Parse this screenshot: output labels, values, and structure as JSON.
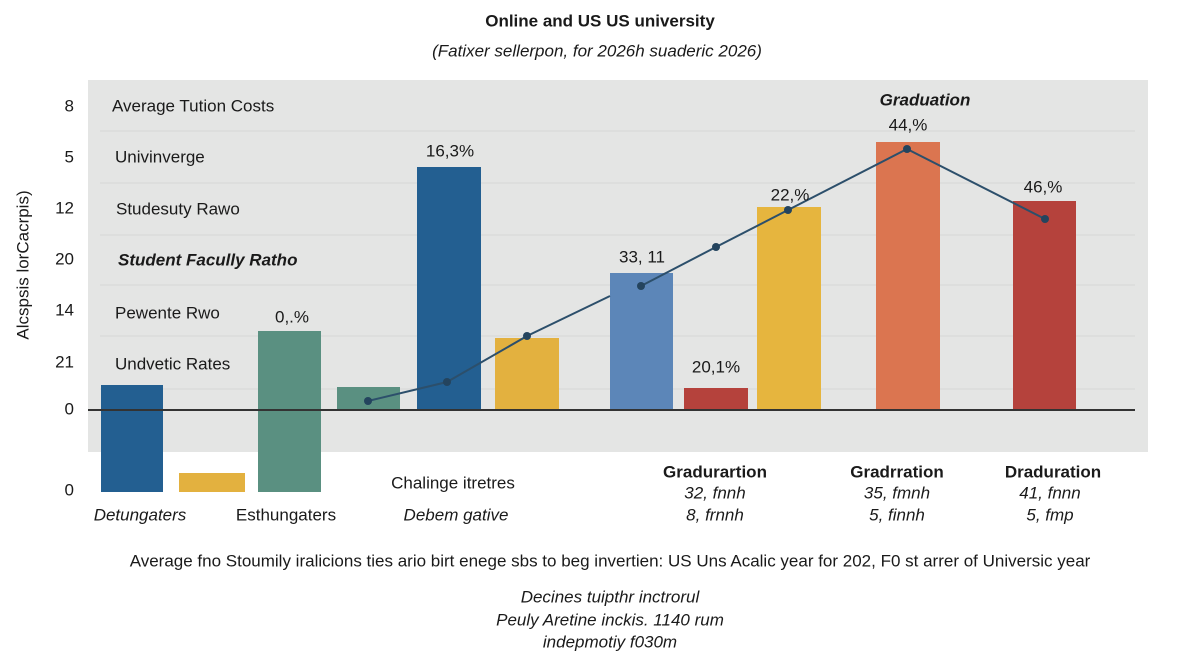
{
  "header": {
    "title": "Online and US US university",
    "subtitle": "(Fatixer sellerpon, for 2026h suaderic 2026)"
  },
  "axis": {
    "label": "Alcspsis lorCacrpis)",
    "ticks": [
      "8",
      "5",
      "12",
      "20",
      "14",
      "21",
      "0",
      "0"
    ]
  },
  "rows": [
    "Average Tution Costs",
    "Univinverge",
    "Studesuty Rawo",
    "Student Facully Ratho",
    "Pewente Rwo",
    "Undvetic Rates"
  ],
  "bar_labels": [
    "0,.%",
    "16,3%",
    "33, 11",
    "20,1%",
    "22,%",
    "Graduation",
    "44,%",
    "46,%"
  ],
  "groups": [
    {
      "lines": [
        "Detungaters"
      ]
    },
    {
      "lines": [
        "Esthungaters"
      ]
    },
    {
      "lines": [
        "Chalinge itretres",
        "Debem gative"
      ]
    },
    {
      "lines": [
        "Gradurartion",
        "32, fnnh",
        "8, frnnh"
      ]
    },
    {
      "lines": [
        "Gradrration",
        "35, fmnh",
        "5, finnh"
      ]
    },
    {
      "lines": [
        "Draduration",
        "41, fnnn",
        "5, fmp"
      ]
    }
  ],
  "footnote": "Average fno Stoumily iralicions ties ario birt enege sbs to beg invertien: US Uns Acalic year for 202, F0 st arrer of Universic year",
  "notes": [
    "Decines tuipthr inctrorul",
    "Peuly Aretine inckis. 1140 rum",
    "indepmotiy f030m"
  ]
}
